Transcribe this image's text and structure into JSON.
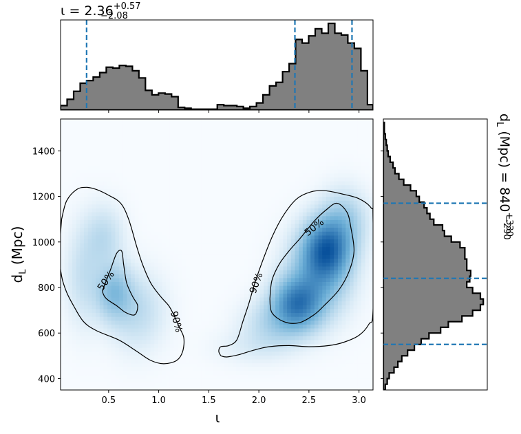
{
  "chart_data": {
    "type": "corner",
    "x_param": {
      "symbol": "ι",
      "title_main": "ι = 2.36",
      "title_plus": "+0.57",
      "title_minus": "−2.08",
      "median": 2.36,
      "lower": 0.28,
      "upper": 2.93,
      "xlim": [
        0.02,
        3.14
      ],
      "ticks": [
        0.5,
        1.0,
        1.5,
        2.0,
        2.5,
        3.0
      ],
      "tick_labels": [
        "0.5",
        "1.0",
        "1.5",
        "2.0",
        "2.5",
        "3.0"
      ],
      "xlabel": "ι"
    },
    "y_param": {
      "title_main": "d",
      "title_sub": "L",
      "title_rest": " (Mpc) = 840",
      "title_plus": "+330",
      "title_minus": "−290",
      "median": 840,
      "lower": 550,
      "upper": 1170,
      "ylim": [
        350,
        1540
      ],
      "ticks": [
        400,
        600,
        800,
        1000,
        1200,
        1400
      ],
      "tick_labels": [
        "400",
        "600",
        "800",
        "1000",
        "1200",
        "1400"
      ],
      "ylabel_main": "d",
      "ylabel_sub": "L",
      "ylabel_rest": " (Mpc)"
    },
    "hist_x": {
      "bin_edges": [
        0.02,
        0.0852,
        0.1504,
        0.2156,
        0.2808,
        0.346,
        0.4112,
        0.4764,
        0.5416,
        0.6068,
        0.672,
        0.7372,
        0.8024,
        0.8676,
        0.9328,
        0.998,
        1.0632,
        1.1284,
        1.1936,
        1.2588,
        1.324,
        1.3892,
        1.4544,
        1.5196,
        1.5848,
        1.65,
        1.7152,
        1.7804,
        1.8456,
        1.9108,
        1.976,
        2.0412,
        2.1064,
        2.1716,
        2.2368,
        2.302,
        2.3672,
        2.4324,
        2.4976,
        2.5628,
        2.628,
        2.6932,
        2.7584,
        2.8236,
        2.8888,
        2.954,
        3.0192,
        3.0844,
        3.14
      ],
      "density": [
        0.05,
        0.12,
        0.21,
        0.3,
        0.33,
        0.37,
        0.42,
        0.48,
        0.47,
        0.5,
        0.49,
        0.44,
        0.36,
        0.22,
        0.17,
        0.19,
        0.18,
        0.15,
        0.03,
        0.02,
        0.01,
        0.01,
        0.01,
        0.01,
        0.06,
        0.05,
        0.05,
        0.04,
        0.02,
        0.04,
        0.08,
        0.17,
        0.27,
        0.31,
        0.43,
        0.52,
        0.79,
        0.75,
        0.83,
        0.91,
        0.86,
        0.97,
        0.86,
        0.84,
        0.75,
        0.69,
        0.44,
        0.06
      ]
    },
    "hist_y": {
      "bin_edges": [
        350,
        375,
        400,
        425,
        450,
        475,
        500,
        525,
        550,
        575,
        600,
        625,
        650,
        675,
        700,
        725,
        750,
        775,
        800,
        825,
        850,
        875,
        900,
        925,
        950,
        975,
        1000,
        1025,
        1050,
        1075,
        1100,
        1125,
        1150,
        1175,
        1200,
        1225,
        1250,
        1275,
        1300,
        1325,
        1350,
        1375,
        1400,
        1425,
        1450,
        1475,
        1500,
        1525
      ],
      "density": [
        0.02,
        0.04,
        0.06,
        0.11,
        0.15,
        0.19,
        0.25,
        0.32,
        0.39,
        0.47,
        0.59,
        0.67,
        0.81,
        0.92,
        1.0,
        1.03,
        1.0,
        0.92,
        0.86,
        0.89,
        0.9,
        0.86,
        0.86,
        0.84,
        0.84,
        0.79,
        0.7,
        0.63,
        0.61,
        0.52,
        0.48,
        0.45,
        0.42,
        0.37,
        0.34,
        0.28,
        0.21,
        0.16,
        0.12,
        0.1,
        0.07,
        0.05,
        0.04,
        0.03,
        0.02,
        0.01,
        0.01
      ]
    },
    "density_2d": {
      "components": [
        {
          "mx": 0.55,
          "my": 780,
          "sx": 0.12,
          "sy": 80,
          "w": 0.45
        },
        {
          "mx": 0.45,
          "my": 1020,
          "sx": 0.13,
          "sy": 90,
          "w": 0.22
        },
        {
          "mx": 0.78,
          "my": 700,
          "sx": 0.18,
          "sy": 110,
          "w": 0.22
        },
        {
          "mx": 0.25,
          "my": 850,
          "sx": 0.12,
          "sy": 140,
          "w": 0.18
        },
        {
          "mx": 2.38,
          "my": 730,
          "sx": 0.16,
          "sy": 75,
          "w": 0.95
        },
        {
          "mx": 2.68,
          "my": 970,
          "sx": 0.15,
          "sy": 85,
          "w": 1.0
        },
        {
          "mx": 2.6,
          "my": 860,
          "sx": 0.2,
          "sy": 120,
          "w": 0.55
        },
        {
          "mx": 2.85,
          "my": 1090,
          "sx": 0.15,
          "sy": 90,
          "w": 0.35
        },
        {
          "mx": 2.15,
          "my": 640,
          "sx": 0.2,
          "sy": 70,
          "w": 0.25
        },
        {
          "mx": 1.95,
          "my": 540,
          "sx": 0.25,
          "sy": 50,
          "w": 0.08
        }
      ]
    },
    "contours": [
      {
        "label": "50%",
        "label_at": [
          0.47,
          830
        ],
        "label_angle": -55,
        "points": [
          [
            0.45,
            800
          ],
          [
            0.52,
            880
          ],
          [
            0.58,
            950
          ],
          [
            0.63,
            960
          ],
          [
            0.65,
            900
          ],
          [
            0.68,
            820
          ],
          [
            0.74,
            760
          ],
          [
            0.79,
            720
          ],
          [
            0.76,
            680
          ],
          [
            0.67,
            690
          ],
          [
            0.58,
            720
          ],
          [
            0.48,
            750
          ],
          [
            0.44,
            780
          ],
          [
            0.45,
            800
          ]
        ]
      },
      {
        "label": "90%",
        "label_at": [
          1.18,
          650
        ],
        "label_angle": 75,
        "points": [
          [
            0.03,
            1100
          ],
          [
            0.08,
            1180
          ],
          [
            0.18,
            1230
          ],
          [
            0.28,
            1240
          ],
          [
            0.38,
            1230
          ],
          [
            0.5,
            1205
          ],
          [
            0.62,
            1170
          ],
          [
            0.7,
            1100
          ],
          [
            0.78,
            980
          ],
          [
            0.84,
            900
          ],
          [
            0.92,
            820
          ],
          [
            1.02,
            760
          ],
          [
            1.1,
            720
          ],
          [
            1.15,
            680
          ],
          [
            1.2,
            630
          ],
          [
            1.25,
            580
          ],
          [
            1.24,
            520
          ],
          [
            1.18,
            480
          ],
          [
            1.05,
            465
          ],
          [
            0.92,
            480
          ],
          [
            0.78,
            520
          ],
          [
            0.6,
            570
          ],
          [
            0.38,
            610
          ],
          [
            0.25,
            650
          ],
          [
            0.15,
            720
          ],
          [
            0.08,
            780
          ],
          [
            0.03,
            850
          ],
          [
            0.01,
            950
          ],
          [
            0.03,
            1100
          ]
        ]
      },
      {
        "label": "50%",
        "label_at": [
          2.55,
          1065
        ],
        "label_angle": -38,
        "points": [
          [
            2.11,
            750
          ],
          [
            2.13,
            830
          ],
          [
            2.2,
            900
          ],
          [
            2.3,
            960
          ],
          [
            2.42,
            1020
          ],
          [
            2.55,
            1090
          ],
          [
            2.67,
            1140
          ],
          [
            2.78,
            1170
          ],
          [
            2.88,
            1130
          ],
          [
            2.92,
            1060
          ],
          [
            2.95,
            960
          ],
          [
            2.9,
            870
          ],
          [
            2.8,
            790
          ],
          [
            2.65,
            720
          ],
          [
            2.55,
            680
          ],
          [
            2.4,
            645
          ],
          [
            2.25,
            650
          ],
          [
            2.13,
            690
          ],
          [
            2.11,
            750
          ]
        ]
      },
      {
        "label": "90%",
        "label_at": [
          1.97,
          820
        ],
        "label_angle": -70,
        "points": [
          [
            1.62,
            500
          ],
          [
            1.6,
            520
          ],
          [
            1.62,
            540
          ],
          [
            1.7,
            545
          ],
          [
            1.78,
            570
          ],
          [
            1.84,
            650
          ],
          [
            1.9,
            730
          ],
          [
            1.96,
            820
          ],
          [
            2.04,
            920
          ],
          [
            2.14,
            1030
          ],
          [
            2.25,
            1120
          ],
          [
            2.38,
            1190
          ],
          [
            2.52,
            1220
          ],
          [
            2.66,
            1225
          ],
          [
            2.84,
            1210
          ],
          [
            3.0,
            1190
          ],
          [
            3.12,
            1150
          ],
          [
            3.14,
            1100
          ],
          [
            3.14,
            700
          ],
          [
            3.1,
            640
          ],
          [
            3.0,
            590
          ],
          [
            2.85,
            560
          ],
          [
            2.7,
            545
          ],
          [
            2.5,
            540
          ],
          [
            2.3,
            545
          ],
          [
            2.1,
            540
          ],
          [
            1.95,
            525
          ],
          [
            1.8,
            505
          ],
          [
            1.68,
            495
          ],
          [
            1.62,
            500
          ]
        ]
      }
    ],
    "colors": {
      "hist_fill": "#808080",
      "hist_edge": "#000000",
      "quantile_line": "#1f77b4",
      "cmap_low": "#f7fbff",
      "cmap_high": "#08519c",
      "contour": "#000000"
    }
  }
}
